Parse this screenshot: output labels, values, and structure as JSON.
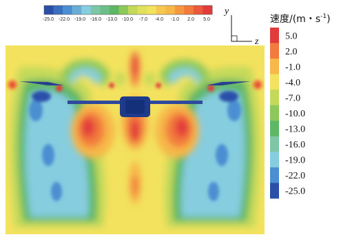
{
  "legend": {
    "title": "速度/(m・s",
    "title_sup": "-1",
    "title_end": ")",
    "levels": [
      "5.0",
      "2.0",
      "-1.0",
      "-4.0",
      "-7.0",
      "-10.0",
      "-13.0",
      "-16.0",
      "-19.0",
      "-22.0",
      "-25.0"
    ],
    "colors": [
      "#e23b3b",
      "#f27a3c",
      "#f7b849",
      "#f3e25e",
      "#c4d95a",
      "#8dc95a",
      "#5db765",
      "#7ec6a6",
      "#86cde0",
      "#4b8fd2",
      "#2a4fa9"
    ]
  },
  "top_bar": {
    "labels": [
      "-25.0",
      "-22.0",
      "-19.0",
      "-16.0",
      "-13.0",
      "-10.0",
      "-7.0",
      "-4.0",
      "-1.0",
      "2.0",
      "5.0"
    ],
    "colors": [
      "#2a4fa9",
      "#3a6fc0",
      "#4b8fd2",
      "#6aaed8",
      "#86cde0",
      "#7ec6a6",
      "#6cbf88",
      "#5db765",
      "#8dc95a",
      "#c4d95a",
      "#dfe15d",
      "#f3e25e",
      "#f7c84f",
      "#f7b849",
      "#f5983f",
      "#f27a3c",
      "#ea5a3a",
      "#e23b3b"
    ]
  },
  "axes": {
    "y": "y",
    "z": "z"
  }
}
